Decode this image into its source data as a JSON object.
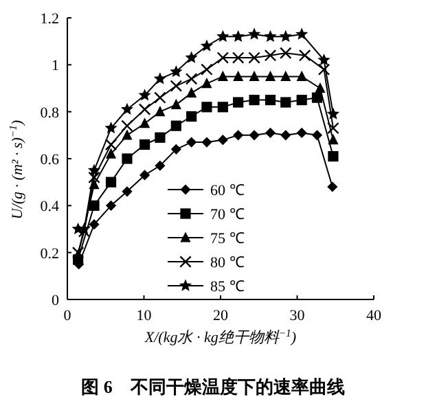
{
  "chart_data": {
    "type": "line",
    "title": "图 6　不同干燥温度下的速率曲线",
    "xlabel": "X/(kg水 · kg绝干物料$^{−1}$)",
    "ylabel": "U/(g · (m² · s)$^{−1}$)",
    "xlim": [
      0,
      40
    ],
    "xticks": [
      0,
      10,
      20,
      30,
      40
    ],
    "ylim": [
      0,
      1.2
    ],
    "yticks": [
      0,
      0.2,
      0.4,
      0.6,
      0.8,
      1,
      1.2
    ],
    "legend": "bottom",
    "grid": false,
    "series": [
      {
        "name": "60 ℃",
        "color": "#000000",
        "marker": "diamond",
        "x": [
          1.5,
          3.5,
          5.7,
          7.8,
          10.1,
          12.1,
          14.2,
          16.2,
          18.2,
          20.3,
          22.3,
          24.4,
          26.5,
          28.5,
          30.6,
          32.6,
          34.6
        ],
        "values": [
          0.15,
          0.32,
          0.4,
          0.46,
          0.53,
          0.57,
          0.64,
          0.67,
          0.67,
          0.68,
          0.7,
          0.7,
          0.71,
          0.7,
          0.71,
          0.7,
          0.48
        ]
      },
      {
        "name": "70 ℃",
        "color": "#000000",
        "marker": "square",
        "x": [
          1.4,
          3.5,
          5.7,
          7.8,
          10.1,
          12.1,
          14.2,
          16.2,
          18.2,
          20.3,
          22.3,
          24.4,
          26.5,
          28.5,
          30.6,
          32.6,
          34.7
        ],
        "values": [
          0.17,
          0.4,
          0.5,
          0.6,
          0.66,
          0.69,
          0.74,
          0.78,
          0.82,
          0.82,
          0.84,
          0.85,
          0.85,
          0.84,
          0.85,
          0.86,
          0.61
        ]
      },
      {
        "name": "75 ℃",
        "color": "#000000",
        "marker": "triangle",
        "x": [
          1.4,
          3.5,
          5.7,
          7.8,
          10.1,
          12.1,
          14.2,
          16.2,
          18.2,
          20.3,
          22.3,
          24.4,
          26.5,
          28.5,
          30.6,
          33.0,
          34.7
        ],
        "values": [
          0.19,
          0.49,
          0.62,
          0.7,
          0.75,
          0.8,
          0.83,
          0.88,
          0.92,
          0.95,
          0.95,
          0.95,
          0.95,
          0.95,
          0.95,
          0.9,
          0.68
        ]
      },
      {
        "name": "80 ℃",
        "color": "#000000",
        "marker": "cross",
        "x": [
          1.4,
          2.2,
          3.5,
          5.7,
          7.8,
          10.1,
          12.1,
          14.2,
          16.2,
          18.2,
          20.3,
          22.3,
          24.4,
          26.5,
          28.5,
          31.0,
          33.5,
          34.7
        ],
        "values": [
          0.2,
          0.29,
          0.52,
          0.66,
          0.74,
          0.81,
          0.86,
          0.91,
          0.94,
          0.98,
          1.03,
          1.03,
          1.03,
          1.04,
          1.05,
          1.04,
          0.98,
          0.73
        ]
      },
      {
        "name": "85 ℃",
        "color": "#000000",
        "marker": "star",
        "x": [
          1.4,
          2.2,
          3.5,
          5.7,
          7.8,
          10.1,
          12.1,
          14.2,
          16.2,
          18.2,
          20.3,
          22.3,
          24.4,
          26.5,
          28.5,
          30.6,
          33.5,
          34.7
        ],
        "values": [
          0.3,
          0.3,
          0.55,
          0.73,
          0.81,
          0.87,
          0.94,
          0.97,
          1.03,
          1.08,
          1.12,
          1.12,
          1.13,
          1.12,
          1.12,
          1.13,
          1.02,
          0.79
        ]
      }
    ]
  }
}
